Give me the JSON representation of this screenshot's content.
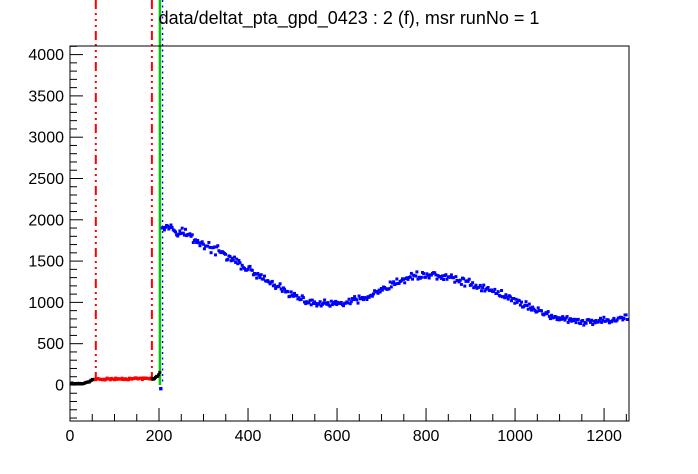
{
  "window": {
    "background_color": "#ffffff"
  },
  "chart_data": {
    "type": "scatter",
    "title": "data/deltat_pta_gpd_0423 : 2 (f), msr runNo = 1",
    "xlabel": "",
    "ylabel": "",
    "grid": false,
    "legend": null,
    "xlim": [
      0,
      1256
    ],
    "ylim": [
      -436,
      4104
    ],
    "x_major_ticks": [
      0,
      200,
      400,
      600,
      800,
      1000,
      1200
    ],
    "x_tick_labels": [
      "0",
      "200",
      "400",
      "600",
      "800",
      "1000",
      "1200"
    ],
    "x_minor_step": 50,
    "y_major_ticks": [
      0,
      500,
      1000,
      1500,
      2000,
      2500,
      3000,
      3500,
      4000
    ],
    "y_tick_labels": [
      "0",
      "500",
      "1000",
      "1500",
      "2000",
      "2500",
      "3000",
      "3500",
      "4000"
    ],
    "y_minor_step": 100,
    "vlines": [
      {
        "name": "background-range-start-line",
        "x": 58,
        "color": "#ff0000",
        "style": "dashdot",
        "width": 2
      },
      {
        "name": "background-range-end-line",
        "x": 184,
        "color": "#ff0000",
        "style": "dashdot",
        "width": 2
      },
      {
        "name": "t0-line",
        "x": 202,
        "color": "#00cc00",
        "style": "solid",
        "width": 2.5
      },
      {
        "name": "data-range-start-line",
        "x": 208,
        "color": "#0000ff",
        "style": "dotted",
        "width": 1.4
      }
    ],
    "series": [
      {
        "name": "raw-histogram-early-black",
        "color": "#000000",
        "marker_px": 3,
        "bin_step": 2.4,
        "noise": 10,
        "noise_scale": "flat",
        "seed": 11,
        "keypoints": [
          [
            0,
            18
          ],
          [
            20,
            18
          ],
          [
            34,
            22
          ],
          [
            42,
            40
          ],
          [
            50,
            60
          ],
          [
            56,
            70
          ]
        ]
      },
      {
        "name": "background-region-red",
        "color": "#ff0000",
        "marker_px": 3,
        "bin_step": 2.4,
        "noise": 16,
        "noise_scale": "flat",
        "seed": 23,
        "keypoints": [
          [
            57,
            70
          ],
          [
            120,
            75
          ],
          [
            184,
            80
          ]
        ]
      },
      {
        "name": "raw-histogram-pre-t0-black",
        "color": "#000000",
        "marker_px": 3,
        "bin_step": 2.4,
        "noise": 20,
        "noise_scale": "flat",
        "seed": 37,
        "keypoints": [
          [
            185,
            82
          ],
          [
            192,
            95
          ],
          [
            198,
            115
          ],
          [
            202,
            150
          ]
        ]
      },
      {
        "name": "t0-bin-blue",
        "color": "#0000ff",
        "marker_px": 3.4,
        "bin_step": 2.5,
        "noise": 0,
        "noise_scale": "flat",
        "seed": 5,
        "keypoints": [
          [
            204,
            -45
          ]
        ]
      },
      {
        "name": "data-region-blue",
        "color": "#0000ff",
        "marker_px": 3,
        "bin_step": 2.5,
        "noise": 55,
        "noise_scale": "sqrt",
        "seed": 97,
        "keypoints": [
          [
            207,
            1950
          ],
          [
            235,
            1895
          ],
          [
            265,
            1820
          ],
          [
            295,
            1715
          ],
          [
            340,
            1600
          ],
          [
            385,
            1450
          ],
          [
            430,
            1295
          ],
          [
            475,
            1160
          ],
          [
            520,
            1030
          ],
          [
            555,
            985
          ],
          [
            590,
            975
          ],
          [
            630,
            1005
          ],
          [
            670,
            1065
          ],
          [
            710,
            1165
          ],
          [
            745,
            1265
          ],
          [
            780,
            1330
          ],
          [
            820,
            1330
          ],
          [
            860,
            1290
          ],
          [
            900,
            1230
          ],
          [
            935,
            1160
          ],
          [
            966,
            1113
          ],
          [
            1000,
            1020
          ],
          [
            1040,
            930
          ],
          [
            1078,
            845
          ],
          [
            1110,
            790
          ],
          [
            1157,
            755
          ],
          [
            1200,
            780
          ],
          [
            1230,
            805
          ],
          [
            1254,
            823
          ]
        ]
      }
    ]
  }
}
